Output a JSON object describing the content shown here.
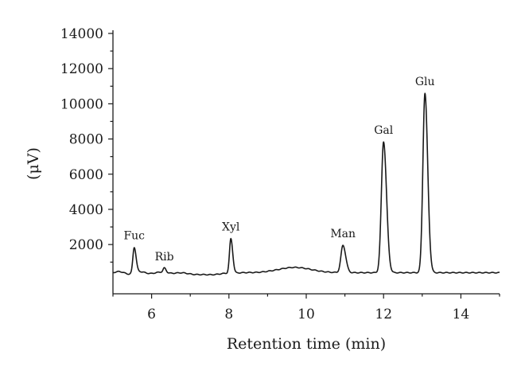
{
  "chart_data": {
    "type": "line",
    "title": "",
    "xlabel": "Retention time (min)",
    "ylabel": "(μV)",
    "xlim": [
      5,
      15
    ],
    "ylim": [
      -800,
      14000
    ],
    "x_ticks": [
      6,
      8,
      10,
      12,
      14
    ],
    "y_ticks": [
      2000,
      4000,
      6000,
      8000,
      10000,
      12000,
      14000
    ],
    "grid": false,
    "baseline": 400,
    "peaks": [
      {
        "label": "Fuc",
        "x": 5.55,
        "y": 1850
      },
      {
        "label": "Rib",
        "x": 6.33,
        "y": 650
      },
      {
        "label": "Xyl",
        "x": 8.05,
        "y": 2350
      },
      {
        "label": "Man",
        "x": 10.95,
        "y": 1950
      },
      {
        "label": "Gal",
        "x": 12.0,
        "y": 7850
      },
      {
        "label": "Glu",
        "x": 13.07,
        "y": 10600
      }
    ]
  }
}
